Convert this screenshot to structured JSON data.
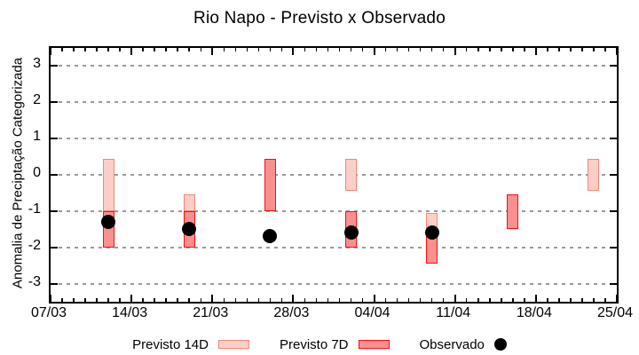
{
  "title": "Rio Napo - Previsto x Observado",
  "y_axis": {
    "label": "Anomalia de Preciptação Categorizada",
    "ticks": [
      3,
      2,
      1,
      0,
      -1,
      -2,
      -3
    ],
    "range": [
      -3.5,
      3.5
    ]
  },
  "x_axis": {
    "tick_labels": [
      "07/03",
      "14/03",
      "21/03",
      "28/03",
      "04/04",
      "11/04",
      "18/04",
      "25/04"
    ],
    "major_tick_interval_days": 7,
    "minor_tick_interval_days": 1,
    "total_days": 49
  },
  "legend": {
    "items": [
      {
        "label": "Previsto 14D",
        "swatch": "light-pink-box"
      },
      {
        "label": "Previsto 7D",
        "swatch": "red-box"
      },
      {
        "label": "Observado",
        "swatch": "black-dot"
      }
    ]
  },
  "colors": {
    "previsto14d_fill": "#fbcfc8",
    "previsto14d_border": "#f08878",
    "previsto7d_fill": "#f99090",
    "previsto7d_border": "#ee1111",
    "observado": "#000000",
    "grid": "#9a9a9a",
    "frame": "#000000"
  },
  "chart_data": {
    "type": "bar",
    "title": "Rio Napo - Previsto x Observado",
    "xlabel": "",
    "ylabel": "Anomalia de Preciptação Categorizada",
    "ylim": [
      -3.5,
      3.5
    ],
    "yticks": [
      3,
      2,
      1,
      0,
      -1,
      -2,
      -3
    ],
    "x_tick_labels": [
      "07/03",
      "14/03",
      "21/03",
      "28/03",
      "04/04",
      "11/04",
      "18/04",
      "25/04"
    ],
    "grid": "horizontal dashed",
    "legend_position": "bottom center",
    "series": [
      {
        "name": "Previsto 14D",
        "type": "floating-bar",
        "bars": [
          {
            "date": "12/03",
            "day": 5,
            "low": -1.0,
            "high": 0.45
          },
          {
            "date": "19/03",
            "day": 12,
            "low": -1.0,
            "high": -0.55
          },
          {
            "date": "02/04",
            "day": 26,
            "low": -0.45,
            "high": 0.45
          },
          {
            "date": "09/04",
            "day": 33,
            "low": -1.55,
            "high": -1.05
          },
          {
            "date": "23/04",
            "day": 47,
            "low": -0.45,
            "high": 0.45
          }
        ]
      },
      {
        "name": "Previsto 7D",
        "type": "floating-bar",
        "bars": [
          {
            "date": "12/03",
            "day": 5,
            "low": -2.0,
            "high": -1.0
          },
          {
            "date": "19/03",
            "day": 12,
            "low": -2.0,
            "high": -1.0
          },
          {
            "date": "26/03",
            "day": 19,
            "low": -1.0,
            "high": 0.45
          },
          {
            "date": "02/04",
            "day": 26,
            "low": -2.0,
            "high": -1.0
          },
          {
            "date": "09/04",
            "day": 33,
            "low": -2.45,
            "high": -1.55
          },
          {
            "date": "16/04",
            "day": 40,
            "low": -1.5,
            "high": -0.55
          }
        ]
      },
      {
        "name": "Observado",
        "type": "scatter",
        "points": [
          {
            "date": "12/03",
            "day": 5,
            "value": -1.3
          },
          {
            "date": "19/03",
            "day": 12,
            "value": -1.5
          },
          {
            "date": "26/03",
            "day": 19,
            "value": -1.7
          },
          {
            "date": "02/04",
            "day": 26,
            "value": -1.6
          },
          {
            "date": "09/04",
            "day": 33,
            "value": -1.6
          }
        ]
      }
    ]
  }
}
